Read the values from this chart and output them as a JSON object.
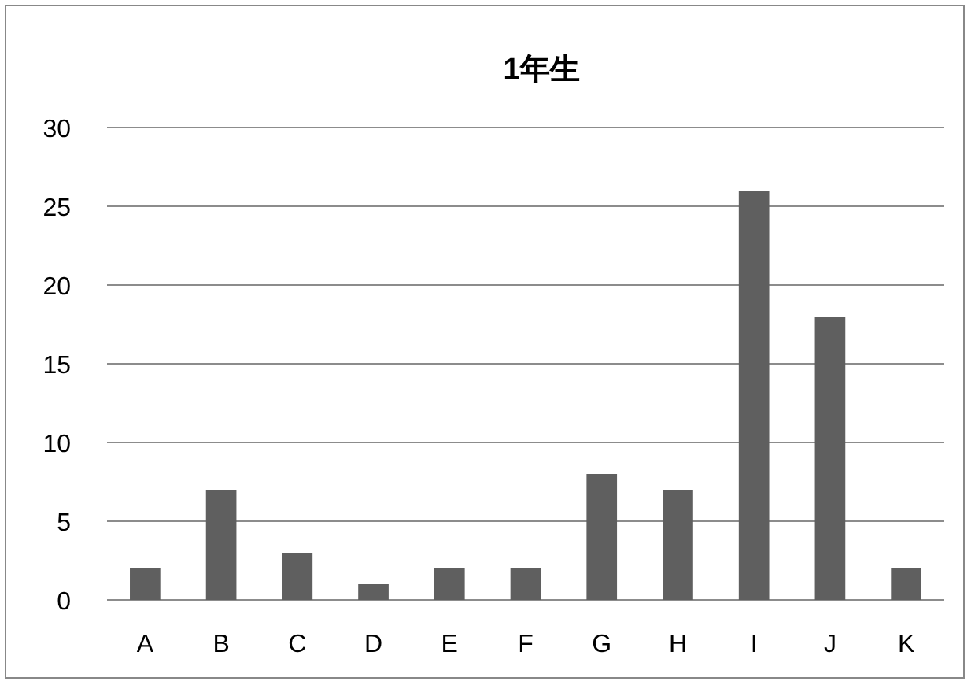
{
  "chart_data": {
    "type": "bar",
    "title": "1年生",
    "categories": [
      "A",
      "B",
      "C",
      "D",
      "E",
      "F",
      "G",
      "H",
      "I",
      "J",
      "K"
    ],
    "values": [
      2,
      7,
      3,
      1,
      2,
      2,
      8,
      7,
      26,
      18,
      2
    ],
    "color": "#5f5f5f",
    "ylim": [
      0,
      30
    ],
    "yticks": [
      0,
      5,
      10,
      15,
      20,
      25,
      30
    ],
    "grid": "y"
  }
}
